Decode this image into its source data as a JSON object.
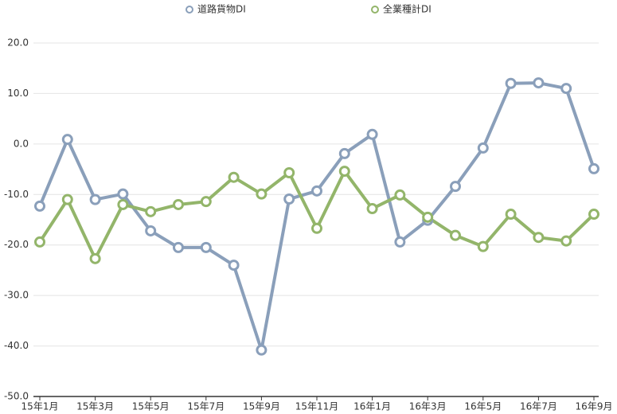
{
  "chart_data": {
    "type": "line",
    "categories": [
      "15年1月",
      null,
      "15年3月",
      null,
      "15年5月",
      null,
      "15年7月",
      null,
      "15年9月",
      null,
      "15年11月",
      null,
      "16年1月",
      null,
      "16年3月",
      null,
      "16年5月",
      null,
      "16年7月",
      null,
      "16年9月"
    ],
    "series": [
      {
        "name": "道路貨物DI",
        "color": "#8a9fba",
        "values": [
          -12.3,
          0.9,
          -11.0,
          -9.9,
          -17.2,
          -20.5,
          -20.5,
          -24.0,
          -40.8,
          -10.9,
          -9.3,
          -1.9,
          1.9,
          -19.4,
          -15.1,
          -8.4,
          -0.8,
          12.0,
          12.1,
          11.0,
          -4.9
        ]
      },
      {
        "name": "全業種計DI",
        "color": "#93b56a",
        "values": [
          -19.4,
          -11.0,
          -22.7,
          -12.0,
          -13.4,
          -12.0,
          -11.4,
          -6.6,
          -9.9,
          -5.7,
          -16.7,
          -5.4,
          -12.8,
          -10.1,
          -14.5,
          -18.1,
          -20.3,
          -13.9,
          -18.5,
          -19.2,
          -13.9
        ]
      }
    ],
    "ylim": [
      -50,
      20
    ],
    "yticks": [
      {
        "value": -50,
        "label": "-50.0"
      },
      {
        "value": -40,
        "label": "-40.0"
      },
      {
        "value": -30,
        "label": "-30.0"
      },
      {
        "value": -20,
        "label": "-20.0"
      },
      {
        "value": -10,
        "label": "-10.0"
      },
      {
        "value": 0,
        "label": "0.0"
      },
      {
        "value": 10,
        "label": "10.0"
      },
      {
        "value": 20,
        "label": "20.0"
      }
    ],
    "grid": true,
    "legend": "top"
  }
}
